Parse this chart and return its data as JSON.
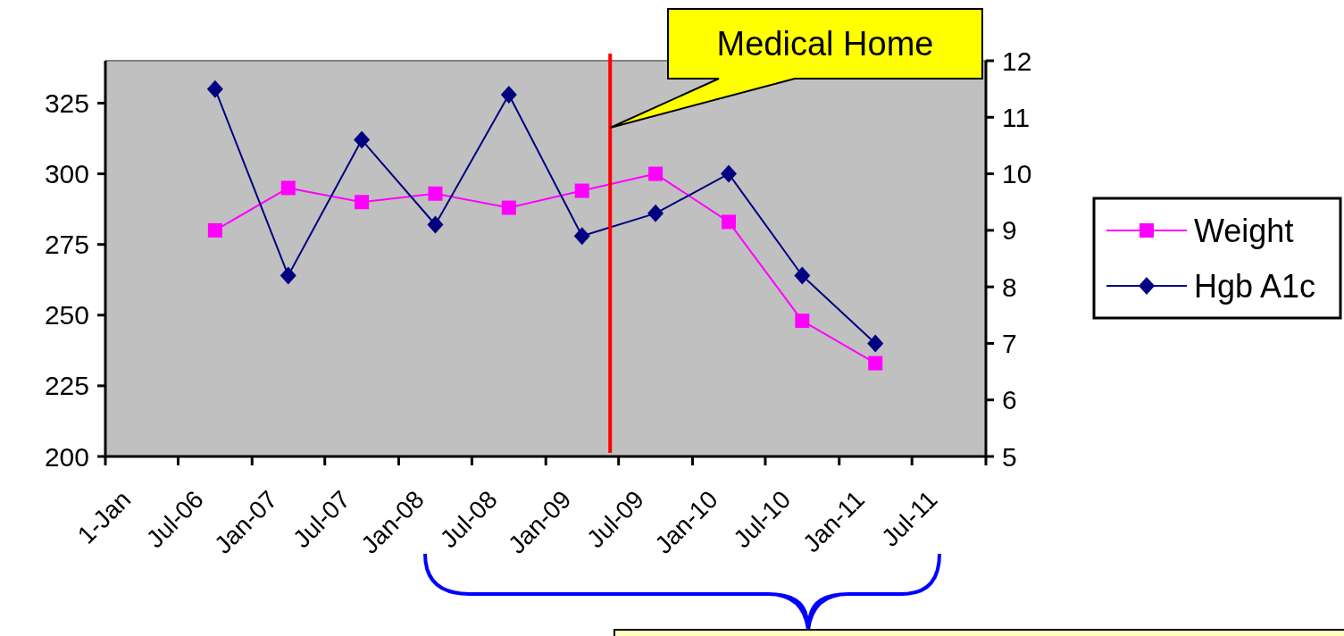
{
  "chart_data": {
    "type": "line",
    "x": [
      "2006-10",
      "2007-04",
      "2007-10",
      "2008-04",
      "2008-10",
      "2009-04",
      "2009-10",
      "2010-04",
      "2010-10",
      "2011-04"
    ],
    "series": [
      {
        "name": "Weight",
        "color": "#ff00ff",
        "marker": "square",
        "values": [
          280,
          295,
          290,
          293,
          288,
          294,
          300,
          283,
          248,
          233
        ]
      },
      {
        "name": "Hgb A1c",
        "color": "#000080",
        "marker": "diamond",
        "axis": "y2",
        "values": [
          11.5,
          8.2,
          10.6,
          9.1,
          11.4,
          8.9,
          9.3,
          10.0,
          8.2,
          7.0
        ]
      }
    ],
    "xlim": [
      "2006-01",
      "2012-01"
    ],
    "xticks": [
      {
        "value": "2006-01",
        "label": "1-Jan"
      },
      {
        "value": "2006-07",
        "label": "Jul-06"
      },
      {
        "value": "2007-01",
        "label": "Jan-07"
      },
      {
        "value": "2007-07",
        "label": "Jul-07"
      },
      {
        "value": "2008-01",
        "label": "Jan-08"
      },
      {
        "value": "2008-07",
        "label": "Jul-08"
      },
      {
        "value": "2009-01",
        "label": "Jan-09"
      },
      {
        "value": "2009-07",
        "label": "Jul-09"
      },
      {
        "value": "2010-01",
        "label": "Jan-10"
      },
      {
        "value": "2010-07",
        "label": "Jul-10"
      },
      {
        "value": "2011-01",
        "label": "Jan-11"
      },
      {
        "value": "2011-07",
        "label": "Jul-11"
      },
      {
        "value": "2012-01",
        "label": null
      }
    ],
    "ylim": [
      200,
      340
    ],
    "yticks": [
      200,
      225,
      250,
      275,
      300,
      325
    ],
    "y2lim": [
      5,
      12
    ],
    "y2ticks": [
      5,
      6,
      7,
      8,
      9,
      10,
      11,
      12
    ],
    "ref_lines": [
      {
        "axis": "x",
        "value": "2009-06-10",
        "color": "#ff0000"
      }
    ],
    "annotations": [
      "Medical Home"
    ],
    "grid": false,
    "legend": "right",
    "line_style": "solid"
  }
}
